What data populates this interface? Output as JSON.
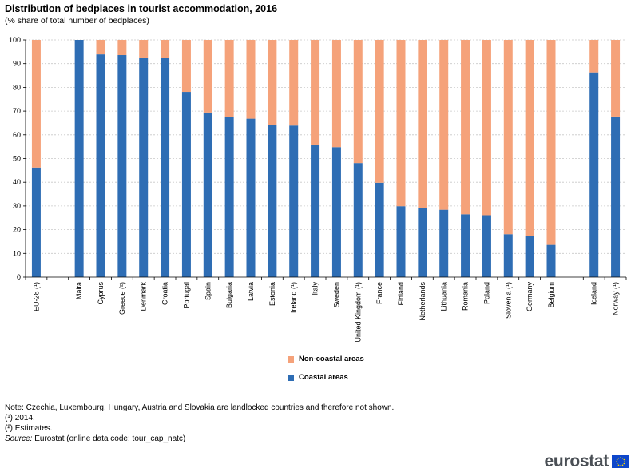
{
  "title": "Distribution of bedplaces in tourist accommodation,  2016",
  "subtitle": "(% share of total number of bedplaces)",
  "chart_data": {
    "type": "bar",
    "stacked": true,
    "title": "Distribution of bedplaces in tourist accommodation,  2016",
    "subtitle": "(% share of total number of bedplaces)",
    "xlabel": "",
    "ylabel": "",
    "ylim": [
      0,
      100
    ],
    "yticks": [
      0,
      10,
      20,
      30,
      40,
      50,
      60,
      70,
      80,
      90,
      100
    ],
    "grid": true,
    "legend_position": "bottom-center",
    "categories": [
      "EU-28 (¹)",
      "",
      "Malta",
      "Cyprus",
      "Greece (²)",
      "Denmark",
      "Croatia",
      "Portugal",
      "Spain",
      "Bulgaria",
      "Latvia",
      "Estonia",
      "Ireland  (¹)",
      "Italy",
      "Sweden",
      "United Kingdom (¹)",
      "France",
      "Finland",
      "Netherlands",
      "Lithuania",
      "Romania",
      "Poland",
      "Slovenia (¹)",
      "Germany",
      "Belgium",
      "",
      "Iceland",
      "Norway (¹)"
    ],
    "series": [
      {
        "name": "Coastal areas",
        "color": "#2e6db4",
        "values": [
          46.2,
          null,
          100,
          93.9,
          93.6,
          92.6,
          92.4,
          78.1,
          69.4,
          67.4,
          66.8,
          64.3,
          63.9,
          55.9,
          54.8,
          48.1,
          39.8,
          29.9,
          29.1,
          28.4,
          26.5,
          26.1,
          18.1,
          17.5,
          13.6,
          null,
          86.3,
          67.7
        ]
      },
      {
        "name": "Non-coastal areas",
        "color": "#f5a27a",
        "values": [
          53.8,
          null,
          0,
          6.1,
          6.4,
          7.4,
          7.6,
          21.9,
          30.6,
          32.6,
          33.2,
          35.7,
          36.1,
          44.1,
          45.2,
          51.9,
          60.2,
          70.1,
          70.9,
          71.6,
          73.5,
          73.9,
          81.9,
          82.5,
          86.4,
          null,
          13.7,
          32.3
        ]
      }
    ]
  },
  "legend": {
    "items": [
      {
        "label": "Non-coastal areas",
        "color": "#f5a27a"
      },
      {
        "label": "Coastal areas",
        "color": "#2e6db4"
      }
    ]
  },
  "notes": {
    "note": "Note: Czechia, Luxembourg, Hungary, Austria and Slovakia are landlocked countries and therefore not shown.",
    "footnote1": "(¹) 2014.",
    "footnote2": "(²) Estimates.",
    "source_label": "Source:",
    "source_text": " Eurostat (online data code: tour_cap_natc)"
  },
  "logo": {
    "text": "eurostat",
    "flag_color": "#0e47cb",
    "star_color": "#ffdd00"
  }
}
